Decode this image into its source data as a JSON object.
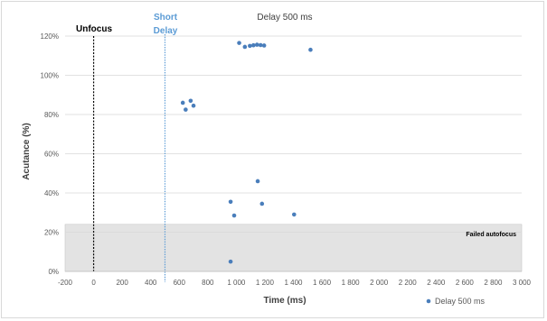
{
  "chart_data": {
    "type": "scatter",
    "title": "Delay 500 ms",
    "xlabel": "Time (ms)",
    "ylabel": "Acutance (%)",
    "xlim": [
      -200,
      3000
    ],
    "ylim": [
      0,
      120
    ],
    "x_ticks": [
      "-200",
      "0",
      "200",
      "400",
      "600",
      "800",
      "1 000",
      "1 200",
      "1 400",
      "1 600",
      "1 800",
      "2 000",
      "2 200",
      "2 400",
      "2 600",
      "2 800",
      "3 000"
    ],
    "y_ticks": [
      "0%",
      "20%",
      "40%",
      "60%",
      "80%",
      "100%",
      "120%"
    ],
    "grid": "horizontal",
    "legend_position": "bottom-right",
    "series": [
      {
        "name": "Delay 500 ms",
        "color": "#4a7ebb",
        "points": [
          {
            "x": 1020,
            "y": 116.5
          },
          {
            "x": 1060,
            "y": 114.5
          },
          {
            "x": 1095,
            "y": 115
          },
          {
            "x": 1120,
            "y": 115.3
          },
          {
            "x": 1145,
            "y": 115.6
          },
          {
            "x": 1170,
            "y": 115.4
          },
          {
            "x": 1195,
            "y": 115.2
          },
          {
            "x": 1520,
            "y": 113
          },
          {
            "x": 625,
            "y": 86
          },
          {
            "x": 645,
            "y": 82.5
          },
          {
            "x": 680,
            "y": 87
          },
          {
            "x": 700,
            "y": 84.5
          },
          {
            "x": 1150,
            "y": 46
          },
          {
            "x": 960,
            "y": 35.5
          },
          {
            "x": 1180,
            "y": 34.5
          },
          {
            "x": 985,
            "y": 28.5
          },
          {
            "x": 1405,
            "y": 29
          },
          {
            "x": 960,
            "y": 5
          }
        ]
      }
    ],
    "annotations": {
      "unfocus": {
        "label": "Unfocus",
        "x": 0,
        "color": "#000000"
      },
      "short_delay": {
        "label_line1": "Short",
        "label_line2": "Delay",
        "x": 500,
        "color": "#5b9bd5"
      },
      "failed_band": {
        "label": "Failed autofocus",
        "y_from": 0,
        "y_to": 24,
        "color": "#e3e3e3"
      }
    }
  }
}
